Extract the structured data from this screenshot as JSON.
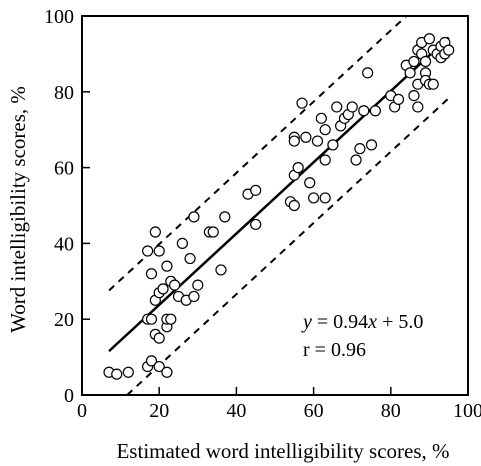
{
  "chart_data": {
    "type": "scatter",
    "title": "",
    "xlabel": "Estimated word intelligibility scores, %",
    "ylabel": "Word intelligibility scores, %",
    "xlim": [
      0,
      100
    ],
    "ylim": [
      0,
      100
    ],
    "x_ticks": [
      0,
      20,
      40,
      60,
      80,
      100
    ],
    "y_ticks": [
      0,
      20,
      40,
      60,
      80,
      100
    ],
    "grid": false,
    "marker": "open-circle",
    "colors": {
      "axis": "#000000",
      "marker_stroke": "#000000",
      "marker_fill": "#ffffff",
      "regression_line": "#000000",
      "bound_lines": "#000000"
    },
    "regression": {
      "slope": 0.94,
      "intercept": 5.0,
      "x_range": [
        7,
        95
      ],
      "style": "solid"
    },
    "bounds": {
      "offset": 16,
      "x_range": [
        7,
        95
      ],
      "style": "dashed"
    },
    "annotations": {
      "equation": {
        "y_var": "y",
        "eq": " = 0.94",
        "x_var": "x",
        "rest": " + 5.0"
      },
      "r": "r = 0.96"
    },
    "points": [
      {
        "x": 7,
        "y": 6
      },
      {
        "x": 9,
        "y": 5.5
      },
      {
        "x": 12,
        "y": 6
      },
      {
        "x": 17,
        "y": 7.5
      },
      {
        "x": 18,
        "y": 9
      },
      {
        "x": 20,
        "y": 7.5
      },
      {
        "x": 22,
        "y": 6
      },
      {
        "x": 17,
        "y": 20
      },
      {
        "x": 18,
        "y": 20
      },
      {
        "x": 19,
        "y": 25
      },
      {
        "x": 19,
        "y": 16
      },
      {
        "x": 20,
        "y": 15
      },
      {
        "x": 20,
        "y": 27
      },
      {
        "x": 21,
        "y": 28
      },
      {
        "x": 22,
        "y": 18
      },
      {
        "x": 22,
        "y": 20
      },
      {
        "x": 23,
        "y": 20
      },
      {
        "x": 23,
        "y": 30
      },
      {
        "x": 24,
        "y": 29
      },
      {
        "x": 25,
        "y": 26
      },
      {
        "x": 27,
        "y": 25
      },
      {
        "x": 29,
        "y": 26
      },
      {
        "x": 30,
        "y": 29
      },
      {
        "x": 18,
        "y": 32
      },
      {
        "x": 22,
        "y": 34
      },
      {
        "x": 17,
        "y": 38
      },
      {
        "x": 19,
        "y": 43
      },
      {
        "x": 20,
        "y": 38
      },
      {
        "x": 26,
        "y": 40
      },
      {
        "x": 28,
        "y": 36
      },
      {
        "x": 29,
        "y": 47
      },
      {
        "x": 33,
        "y": 43
      },
      {
        "x": 34,
        "y": 43
      },
      {
        "x": 37,
        "y": 47
      },
      {
        "x": 36,
        "y": 33
      },
      {
        "x": 43,
        "y": 53
      },
      {
        "x": 45,
        "y": 54
      },
      {
        "x": 45,
        "y": 45
      },
      {
        "x": 54,
        "y": 51
      },
      {
        "x": 55,
        "y": 50
      },
      {
        "x": 55,
        "y": 58
      },
      {
        "x": 55,
        "y": 68
      },
      {
        "x": 55,
        "y": 67
      },
      {
        "x": 56,
        "y": 60
      },
      {
        "x": 57,
        "y": 77
      },
      {
        "x": 58,
        "y": 68
      },
      {
        "x": 59,
        "y": 56
      },
      {
        "x": 60,
        "y": 52
      },
      {
        "x": 61,
        "y": 67
      },
      {
        "x": 62,
        "y": 73
      },
      {
        "x": 63,
        "y": 52
      },
      {
        "x": 63,
        "y": 62
      },
      {
        "x": 65,
        "y": 66
      },
      {
        "x": 63,
        "y": 70
      },
      {
        "x": 66,
        "y": 76
      },
      {
        "x": 67,
        "y": 71
      },
      {
        "x": 68,
        "y": 73
      },
      {
        "x": 69,
        "y": 74
      },
      {
        "x": 70,
        "y": 76
      },
      {
        "x": 71,
        "y": 62
      },
      {
        "x": 72,
        "y": 65
      },
      {
        "x": 73,
        "y": 75
      },
      {
        "x": 74,
        "y": 85
      },
      {
        "x": 75,
        "y": 66
      },
      {
        "x": 76,
        "y": 75
      },
      {
        "x": 80,
        "y": 79
      },
      {
        "x": 81,
        "y": 76
      },
      {
        "x": 82,
        "y": 78
      },
      {
        "x": 84,
        "y": 87
      },
      {
        "x": 85,
        "y": 85
      },
      {
        "x": 86,
        "y": 88
      },
      {
        "x": 86,
        "y": 79
      },
      {
        "x": 87,
        "y": 76
      },
      {
        "x": 87,
        "y": 82
      },
      {
        "x": 87,
        "y": 91
      },
      {
        "x": 88,
        "y": 93
      },
      {
        "x": 88,
        "y": 90
      },
      {
        "x": 89,
        "y": 88
      },
      {
        "x": 89,
        "y": 85
      },
      {
        "x": 89,
        "y": 83
      },
      {
        "x": 90,
        "y": 82
      },
      {
        "x": 90,
        "y": 94
      },
      {
        "x": 91,
        "y": 91
      },
      {
        "x": 91,
        "y": 82
      },
      {
        "x": 92,
        "y": 90
      },
      {
        "x": 93,
        "y": 92
      },
      {
        "x": 93,
        "y": 89
      },
      {
        "x": 94,
        "y": 93
      },
      {
        "x": 94,
        "y": 90
      },
      {
        "x": 95,
        "y": 91
      }
    ]
  }
}
